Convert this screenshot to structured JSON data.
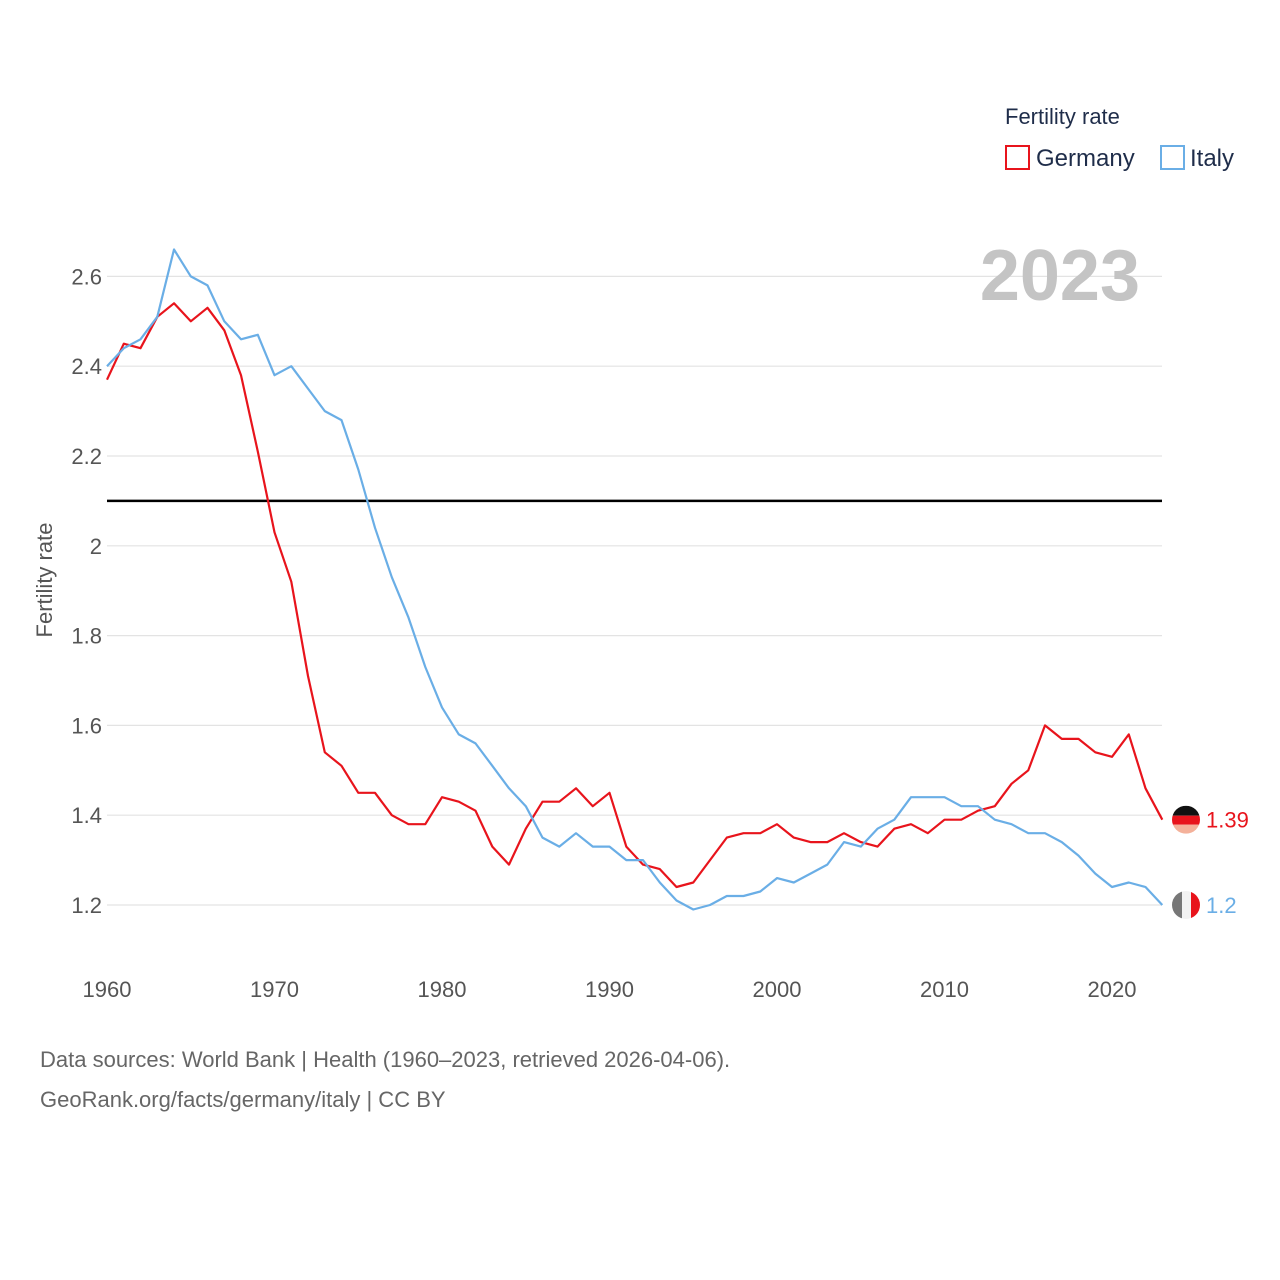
{
  "chart_data": {
    "type": "line",
    "title": "",
    "current_year_label": "2023",
    "ylabel": "Fertility rate",
    "xlabel": "",
    "xlim": [
      1960,
      2023
    ],
    "ylim": [
      1.1,
      2.7
    ],
    "x_ticks": [
      1960,
      1970,
      1980,
      1990,
      2000,
      2010,
      2020
    ],
    "y_ticks": [
      1.2,
      1.4,
      1.6,
      1.8,
      2,
      2.2,
      2.4,
      2.6
    ],
    "y_tick_labels": [
      "1.2",
      "1.4",
      "1.6",
      "1.8",
      "2",
      "2.2",
      "2.4",
      "2.6"
    ],
    "reference_line": 2.1,
    "legend": {
      "title": "Fertility rate",
      "position": "top-right"
    },
    "x": [
      1960,
      1961,
      1962,
      1963,
      1964,
      1965,
      1966,
      1967,
      1968,
      1969,
      1970,
      1971,
      1972,
      1973,
      1974,
      1975,
      1976,
      1977,
      1978,
      1979,
      1980,
      1981,
      1982,
      1983,
      1984,
      1985,
      1986,
      1987,
      1988,
      1989,
      1990,
      1991,
      1992,
      1993,
      1994,
      1995,
      1996,
      1997,
      1998,
      1999,
      2000,
      2001,
      2002,
      2003,
      2004,
      2005,
      2006,
      2007,
      2008,
      2009,
      2010,
      2011,
      2012,
      2013,
      2014,
      2015,
      2016,
      2017,
      2018,
      2019,
      2020,
      2021,
      2022,
      2023
    ],
    "series": [
      {
        "name": "Germany",
        "color": "#e8141c",
        "end_label": "1.39",
        "values": [
          2.37,
          2.45,
          2.44,
          2.51,
          2.54,
          2.5,
          2.53,
          2.48,
          2.38,
          2.21,
          2.03,
          1.92,
          1.71,
          1.54,
          1.51,
          1.45,
          1.45,
          1.4,
          1.38,
          1.38,
          1.44,
          1.43,
          1.41,
          1.33,
          1.29,
          1.37,
          1.43,
          1.43,
          1.46,
          1.42,
          1.45,
          1.33,
          1.29,
          1.28,
          1.24,
          1.25,
          1.3,
          1.35,
          1.36,
          1.36,
          1.38,
          1.35,
          1.34,
          1.34,
          1.36,
          1.34,
          1.33,
          1.37,
          1.38,
          1.36,
          1.39,
          1.39,
          1.41,
          1.42,
          1.47,
          1.5,
          1.6,
          1.57,
          1.57,
          1.54,
          1.53,
          1.58,
          1.46,
          1.39
        ]
      },
      {
        "name": "Italy",
        "color": "#6aaee6",
        "end_label": "1.2",
        "values": [
          2.4,
          2.44,
          2.46,
          2.51,
          2.66,
          2.6,
          2.58,
          2.5,
          2.46,
          2.47,
          2.38,
          2.4,
          2.35,
          2.3,
          2.28,
          2.17,
          2.04,
          1.93,
          1.84,
          1.73,
          1.64,
          1.58,
          1.56,
          1.51,
          1.46,
          1.42,
          1.35,
          1.33,
          1.36,
          1.33,
          1.33,
          1.3,
          1.3,
          1.25,
          1.21,
          1.19,
          1.2,
          1.22,
          1.22,
          1.23,
          1.26,
          1.25,
          1.27,
          1.29,
          1.34,
          1.33,
          1.37,
          1.39,
          1.44,
          1.44,
          1.44,
          1.42,
          1.42,
          1.39,
          1.38,
          1.36,
          1.36,
          1.34,
          1.31,
          1.27,
          1.24,
          1.25,
          1.24,
          1.2
        ]
      }
    ]
  },
  "footer": {
    "source_line1": "Data sources: World Bank | Health (1960–2023, retrieved 2026-04-06).",
    "source_line2": "GeoRank.org/facts/germany/italy | CC BY"
  }
}
